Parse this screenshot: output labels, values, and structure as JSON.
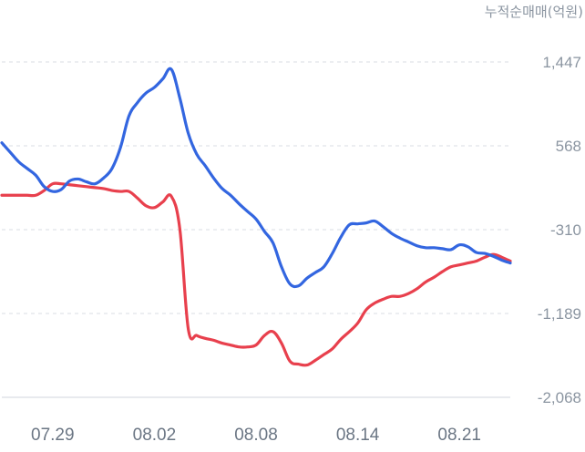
{
  "chart_data": {
    "type": "line",
    "unit_label": "누적순매매(억원)",
    "y_ticks": [
      1447,
      568,
      -310,
      -1189,
      -2068
    ],
    "y_tick_labels": [
      "1,447",
      "568",
      "-310",
      "-1,189",
      "-2,068"
    ],
    "ylim": [
      -2068,
      1447
    ],
    "x_ticks": [
      "07.29",
      "08.02",
      "08.08",
      "08.14",
      "08.21"
    ],
    "x_tick_index": [
      3,
      9,
      15,
      21,
      27
    ],
    "xlim": [
      0,
      30
    ],
    "grid": true,
    "series": [
      {
        "color": "#3366e0",
        "x": [
          0,
          0.5,
          1,
          1.5,
          2,
          2.5,
          3,
          3.5,
          4,
          4.5,
          5,
          5.5,
          6,
          6.5,
          7,
          7.5,
          8,
          8.5,
          9,
          9.5,
          10,
          10.5,
          11,
          11.5,
          12,
          12.5,
          13,
          13.5,
          14,
          14.5,
          15,
          15.5,
          16,
          16.5,
          17,
          17.5,
          18,
          18.5,
          19,
          19.5,
          20,
          20.5,
          21,
          21.5,
          22,
          22.5,
          23,
          23.5,
          24,
          24.5,
          25,
          25.5,
          26,
          26.5,
          27,
          27.5,
          28,
          28.5,
          29,
          29.5,
          30
        ],
        "y": [
          600,
          500,
          400,
          330,
          260,
          140,
          90,
          110,
          200,
          220,
          190,
          170,
          230,
          330,
          550,
          880,
          1020,
          1120,
          1180,
          1270,
          1370,
          1070,
          700,
          480,
          360,
          230,
          120,
          50,
          -40,
          -120,
          -200,
          -330,
          -450,
          -700,
          -880,
          -900,
          -820,
          -760,
          -700,
          -560,
          -390,
          -260,
          -250,
          -240,
          -220,
          -280,
          -350,
          -400,
          -440,
          -480,
          -500,
          -500,
          -510,
          -520,
          -470,
          -490,
          -550,
          -560,
          -590,
          -630,
          -660
        ],
        "values_note": ""
      },
      {
        "color": "#e8404d",
        "x": [
          0,
          0.5,
          1,
          1.5,
          2,
          2.5,
          3,
          3.5,
          4,
          4.5,
          5,
          5.5,
          6,
          6.5,
          7,
          7.5,
          8,
          8.5,
          9,
          9.5,
          10,
          10.5,
          11,
          11.5,
          12,
          12.5,
          13,
          13.5,
          14,
          14.5,
          15,
          15.5,
          16,
          16.5,
          17,
          17.5,
          18,
          18.5,
          19,
          19.5,
          20,
          20.5,
          21,
          21.5,
          22,
          22.5,
          23,
          23.5,
          24,
          24.5,
          25,
          25.5,
          26,
          26.5,
          27,
          27.5,
          28,
          28.5,
          29,
          29.5,
          30
        ],
        "y": [
          50,
          50,
          50,
          50,
          50,
          100,
          170,
          170,
          160,
          150,
          140,
          130,
          120,
          100,
          90,
          90,
          20,
          -60,
          -80,
          -20,
          40,
          -300,
          -1350,
          -1420,
          -1450,
          -1470,
          -1500,
          -1520,
          -1540,
          -1540,
          -1520,
          -1420,
          -1380,
          -1500,
          -1690,
          -1720,
          -1730,
          -1680,
          -1620,
          -1560,
          -1460,
          -1380,
          -1290,
          -1150,
          -1080,
          -1040,
          -1010,
          -1010,
          -980,
          -930,
          -860,
          -810,
          -750,
          -700,
          -680,
          -660,
          -640,
          -600,
          -570,
          -600,
          -640
        ]
      }
    ]
  }
}
